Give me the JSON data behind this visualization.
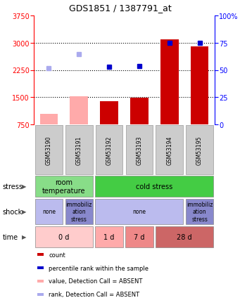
{
  "title": "GDS1851 / 1387791_at",
  "samples": [
    "GSM53190",
    "GSM53191",
    "GSM53192",
    "GSM53193",
    "GSM53194",
    "GSM53195"
  ],
  "bar_values": [
    1050,
    1530,
    1390,
    1490,
    3100,
    2900
  ],
  "bar_colors": [
    "#ffaaaa",
    "#ffaaaa",
    "#cc0000",
    "#cc0000",
    "#cc0000",
    "#cc0000"
  ],
  "scatter_values": [
    2290,
    2680,
    2340,
    2360,
    3000,
    3000
  ],
  "scatter_colors": [
    "#aaaaee",
    "#aaaaee",
    "#0000cc",
    "#0000cc",
    "#0000cc",
    "#0000cc"
  ],
  "ylim_left": [
    750,
    3750
  ],
  "ylim_right": [
    0,
    100
  ],
  "yticks_left": [
    750,
    1500,
    2250,
    3000,
    3750
  ],
  "yticks_right": [
    0,
    25,
    50,
    75,
    100
  ],
  "hlines": [
    1500,
    2250,
    3000
  ],
  "stress_segments": [
    {
      "label": "room\ntemperature",
      "start": 0,
      "end": 2,
      "color": "#88dd88"
    },
    {
      "label": "cold stress",
      "start": 2,
      "end": 6,
      "color": "#44cc44"
    }
  ],
  "shock_segments": [
    {
      "label": "none",
      "start": 0,
      "end": 1,
      "color": "#bbbbee"
    },
    {
      "label": "immobiliz\nation\nstress",
      "start": 1,
      "end": 2,
      "color": "#8888cc"
    },
    {
      "label": "none",
      "start": 2,
      "end": 5,
      "color": "#bbbbee"
    },
    {
      "label": "immobiliz\nation\nstress",
      "start": 5,
      "end": 6,
      "color": "#8888cc"
    }
  ],
  "time_segments": [
    {
      "label": "0 d",
      "start": 0,
      "end": 2,
      "color": "#ffcccc"
    },
    {
      "label": "1 d",
      "start": 2,
      "end": 3,
      "color": "#ffaaaa"
    },
    {
      "label": "7 d",
      "start": 3,
      "end": 4,
      "color": "#ee8888"
    },
    {
      "label": "28 d",
      "start": 4,
      "end": 6,
      "color": "#cc6666"
    }
  ],
  "row_labels": [
    "stress",
    "shock",
    "time"
  ],
  "legend_items": [
    {
      "color": "#cc0000",
      "label": "count"
    },
    {
      "color": "#0000cc",
      "label": "percentile rank within the sample"
    },
    {
      "color": "#ffaaaa",
      "label": "value, Detection Call = ABSENT"
    },
    {
      "color": "#aaaaee",
      "label": "rank, Detection Call = ABSENT"
    }
  ],
  "bg_color": "#ffffff"
}
